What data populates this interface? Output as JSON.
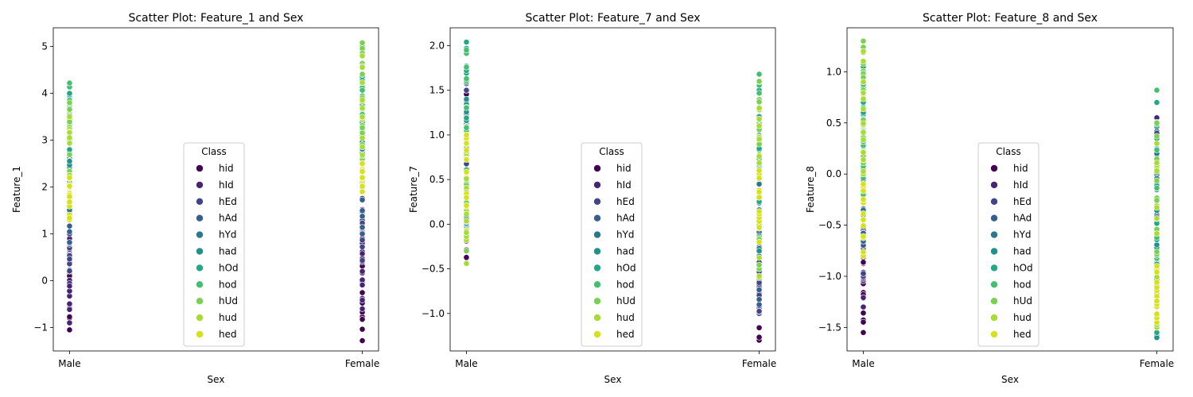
{
  "palette": {
    "hid": "#440154",
    "hId": "#482475",
    "hEd": "#414487",
    "hAd": "#355f8d",
    "hYd": "#2a788e",
    "had": "#21918c",
    "hOd": "#22a884",
    "hod": "#44bf70",
    "hUd": "#7ad151",
    "hud": "#a8db34",
    "hed": "#d5e21a"
  },
  "chart_data": [
    {
      "type": "scatter",
      "title": "Scatter Plot: Feature_1 and Sex",
      "xlabel": "Sex",
      "ylabel": "Feature_1",
      "x_categories": [
        "Male",
        "Female"
      ],
      "ylim": [
        -1.5,
        5.4
      ],
      "yticks": [
        "−1",
        "0",
        "1",
        "2",
        "3",
        "4",
        "5"
      ],
      "yticks_values": [
        -1,
        0,
        1,
        2,
        3,
        4,
        5
      ],
      "legend": {
        "title": "Class",
        "position": "center",
        "entries": [
          "hid",
          "hId",
          "hEd",
          "hAd",
          "hYd",
          "had",
          "hOd",
          "hod",
          "hUd",
          "hud",
          "hed"
        ]
      },
      "series": [
        {
          "name": "hid",
          "Male": [
            -1.05,
            0.4
          ],
          "Female": [
            -1.28,
            0.9
          ]
        },
        {
          "name": "hId",
          "Male": [
            -0.9,
            0.9
          ],
          "Female": [
            -0.6,
            1.4
          ]
        },
        {
          "name": "hEd",
          "Male": [
            0.2,
            1.4
          ],
          "Female": [
            0.4,
            2.0
          ]
        },
        {
          "name": "hAd",
          "Male": [
            0.8,
            2.1
          ],
          "Female": [
            1.0,
            2.6
          ]
        },
        {
          "name": "hYd",
          "Male": [
            1.5,
            2.8
          ],
          "Female": [
            2.0,
            3.5
          ]
        },
        {
          "name": "had",
          "Male": [
            2.2,
            3.3
          ],
          "Female": [
            2.8,
            4.1
          ]
        },
        {
          "name": "hOd",
          "Male": [
            2.8,
            4.0
          ],
          "Female": [
            3.2,
            4.6
          ]
        },
        {
          "name": "hod",
          "Male": [
            3.0,
            4.22
          ],
          "Female": [
            3.5,
            5.0
          ]
        },
        {
          "name": "hUd",
          "Male": [
            2.2,
            3.8
          ],
          "Female": [
            2.6,
            5.08
          ]
        },
        {
          "name": "hud",
          "Male": [
            1.6,
            3.5
          ],
          "Female": [
            2.2,
            4.8
          ]
        },
        {
          "name": "hed",
          "Male": [
            1.3,
            2.2
          ],
          "Female": [
            1.9,
            2.5
          ]
        }
      ]
    },
    {
      "type": "scatter",
      "title": "Scatter Plot: Feature_7 and Sex",
      "xlabel": "Sex",
      "ylabel": "Feature_7",
      "x_categories": [
        "Male",
        "Female"
      ],
      "ylim": [
        -1.42,
        2.2
      ],
      "yticks": [
        "−1.0",
        "−0.5",
        "0.0",
        "0.5",
        "1.0",
        "1.5",
        "2.0"
      ],
      "yticks_values": [
        -1.0,
        -0.5,
        0.0,
        0.5,
        1.0,
        1.5,
        2.0
      ],
      "legend": {
        "title": "Class",
        "position": "center",
        "entries": [
          "hid",
          "hId",
          "hEd",
          "hAd",
          "hYd",
          "had",
          "hOd",
          "hod",
          "hUd",
          "hud",
          "hed"
        ]
      },
      "series": [
        {
          "name": "hid",
          "Male": [
            -0.38,
            1.5
          ],
          "Female": [
            -1.3,
            -0.25
          ]
        },
        {
          "name": "hId",
          "Male": [
            0.3,
            1.6
          ],
          "Female": [
            -1.0,
            0.1
          ]
        },
        {
          "name": "hEd",
          "Male": [
            0.1,
            1.5
          ],
          "Female": [
            -1.0,
            0.5
          ]
        },
        {
          "name": "hAd",
          "Male": [
            -0.1,
            1.2
          ],
          "Female": [
            -0.9,
            0.9
          ]
        },
        {
          "name": "hYd",
          "Male": [
            -0.1,
            1.0
          ],
          "Female": [
            -0.5,
            1.2
          ]
        },
        {
          "name": "had",
          "Male": [
            0.0,
            1.4
          ],
          "Female": [
            -0.3,
            1.4
          ]
        },
        {
          "name": "hOd",
          "Male": [
            0.3,
            2.04
          ],
          "Female": [
            0.1,
            1.5
          ]
        },
        {
          "name": "hod",
          "Male": [
            0.4,
            1.95
          ],
          "Female": [
            0.3,
            1.68
          ]
        },
        {
          "name": "hUd",
          "Male": [
            -0.3,
            1.0
          ],
          "Female": [
            -0.5,
            1.6
          ]
        },
        {
          "name": "hud",
          "Male": [
            -0.44,
            0.9
          ],
          "Female": [
            -0.6,
            1.3
          ]
        },
        {
          "name": "hed",
          "Male": [
            0.2,
            1.0
          ],
          "Female": [
            -0.2,
            0.6
          ]
        }
      ]
    },
    {
      "type": "scatter",
      "title": "Scatter Plot: Feature_8 and Sex",
      "xlabel": "Sex",
      "ylabel": "Feature_8",
      "x_categories": [
        "Male",
        "Female"
      ],
      "ylim": [
        -1.73,
        1.43
      ],
      "yticks": [
        "−1.5",
        "−1.0",
        "−0.5",
        "0.0",
        "0.5",
        "1.0"
      ],
      "yticks_values": [
        -1.5,
        -1.0,
        -0.5,
        0.0,
        0.5,
        1.0
      ],
      "legend": {
        "title": "Class",
        "position": "center",
        "entries": [
          "hid",
          "hId",
          "hEd",
          "hAd",
          "hYd",
          "had",
          "hOd",
          "hod",
          "hUd",
          "hud",
          "hed"
        ]
      },
      "series": [
        {
          "name": "hid",
          "Male": [
            -1.55,
            -0.8
          ],
          "Female": [
            -1.4,
            0.5
          ]
        },
        {
          "name": "hId",
          "Male": [
            -1.3,
            -0.5
          ],
          "Female": [
            -1.2,
            0.55
          ]
        },
        {
          "name": "hEd",
          "Male": [
            -1.0,
            0.0
          ],
          "Female": [
            -1.3,
            0.4
          ]
        },
        {
          "name": "hAd",
          "Male": [
            -0.7,
            0.4
          ],
          "Female": [
            -1.1,
            0.3
          ]
        },
        {
          "name": "hYd",
          "Male": [
            -0.4,
            1.0
          ],
          "Female": [
            -0.9,
            0.2
          ]
        },
        {
          "name": "had",
          "Male": [
            0.1,
            1.05
          ],
          "Female": [
            -1.6,
            0.1
          ]
        },
        {
          "name": "hOd",
          "Male": [
            0.3,
            1.0
          ],
          "Female": [
            -1.55,
            0.7
          ]
        },
        {
          "name": "hod",
          "Male": [
            -0.2,
            0.9
          ],
          "Female": [
            -1.5,
            0.82
          ]
        },
        {
          "name": "hUd",
          "Male": [
            -0.1,
            1.3
          ],
          "Female": [
            -1.3,
            0.5
          ]
        },
        {
          "name": "hud",
          "Male": [
            0.0,
            1.2
          ],
          "Female": [
            -1.5,
            0.3
          ]
        },
        {
          "name": "hed",
          "Male": [
            -0.8,
            -0.1
          ],
          "Female": [
            -1.45,
            -0.9
          ]
        }
      ]
    }
  ]
}
